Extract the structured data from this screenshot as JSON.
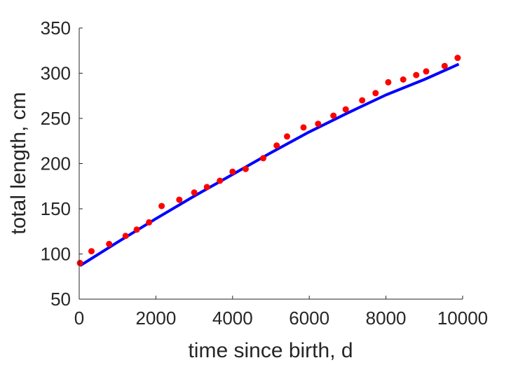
{
  "chart_data": {
    "type": "scatter",
    "xlabel": "time since birth, d",
    "ylabel": "total length, cm",
    "xlim": [
      0,
      10000
    ],
    "ylim": [
      50,
      350
    ],
    "xticks": [
      0,
      2000,
      4000,
      6000,
      8000,
      10000
    ],
    "yticks": [
      50,
      100,
      150,
      200,
      250,
      300,
      350
    ],
    "xtick_labels": [
      "0",
      "2000",
      "4000",
      "6000",
      "8000",
      "10000"
    ],
    "ytick_labels": [
      "50",
      "100",
      "150",
      "200",
      "250",
      "300",
      "350"
    ],
    "grid": false,
    "box": false,
    "series": [
      {
        "kind": "scatter",
        "color": "#ff0000",
        "points": [
          [
            20,
            90
          ],
          [
            320,
            103
          ],
          [
            780,
            111
          ],
          [
            1210,
            120
          ],
          [
            1500,
            127
          ],
          [
            1820,
            135
          ],
          [
            2150,
            153
          ],
          [
            2610,
            160
          ],
          [
            3000,
            168
          ],
          [
            3330,
            174
          ],
          [
            3670,
            181
          ],
          [
            4000,
            191
          ],
          [
            4340,
            194
          ],
          [
            4800,
            206
          ],
          [
            5150,
            220
          ],
          [
            5420,
            230
          ],
          [
            5850,
            240
          ],
          [
            6230,
            244
          ],
          [
            6630,
            253
          ],
          [
            6950,
            260
          ],
          [
            7380,
            270
          ],
          [
            7730,
            278
          ],
          [
            8060,
            290
          ],
          [
            8450,
            293
          ],
          [
            8790,
            298
          ],
          [
            9050,
            302
          ],
          [
            9530,
            308
          ],
          [
            9870,
            317
          ]
        ]
      },
      {
        "kind": "line",
        "color": "#0000ff",
        "points": [
          [
            20,
            87
          ],
          [
            1000,
            113
          ],
          [
            2000,
            139
          ],
          [
            3000,
            164
          ],
          [
            4000,
            188
          ],
          [
            5000,
            212
          ],
          [
            6000,
            235
          ],
          [
            7000,
            256
          ],
          [
            8000,
            276
          ],
          [
            9000,
            293
          ],
          [
            9900,
            310
          ]
        ]
      }
    ]
  }
}
